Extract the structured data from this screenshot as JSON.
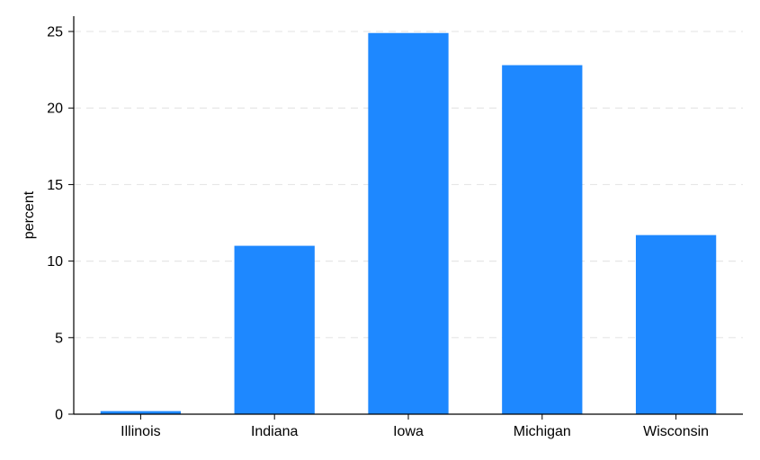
{
  "chart_data": {
    "type": "bar",
    "title": "",
    "xlabel": "",
    "ylabel": "percent",
    "categories": [
      "Illinois",
      "Indiana",
      "Iowa",
      "Michigan",
      "Wisconsin"
    ],
    "series": [
      {
        "values": [
          0.2,
          11.0,
          24.9,
          22.8,
          11.7
        ]
      }
    ],
    "ylim": [
      0,
      26
    ],
    "yticks": [
      0,
      5,
      10,
      15,
      20,
      25
    ],
    "grid": "horizontal dashed",
    "bar_color": "#1e88ff",
    "grid_color": "#e6e6e6",
    "axis_color": "#000000"
  }
}
